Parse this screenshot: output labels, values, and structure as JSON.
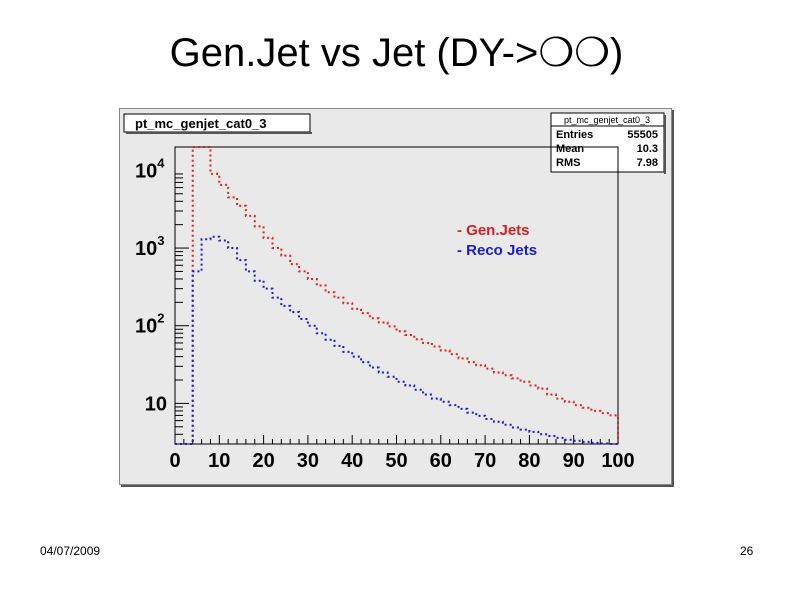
{
  "slide": {
    "title": "Gen.Jet vs Jet (DY->❍❍)",
    "date": "04/07/2009",
    "page_number": "26"
  },
  "chart_data": {
    "type": "histogram-step",
    "title": "pt_mc_genjet_cat0_3",
    "stats": {
      "name": "pt_mc_genjet_cat0_3",
      "rows": [
        {
          "label": "Entries",
          "value": "55505"
        },
        {
          "label": "Mean",
          "value": "10.3"
        },
        {
          "label": "RMS",
          "value": "7.98"
        }
      ]
    },
    "x_ticks": [
      "0",
      "10",
      "20",
      "30",
      "40",
      "50",
      "60",
      "70",
      "80",
      "90",
      "100"
    ],
    "xlim": [
      0,
      100
    ],
    "y_scale": "log",
    "ylim": [
      3,
      20000
    ],
    "y_ticks": [
      {
        "value": 10,
        "base": "10",
        "exp": ""
      },
      {
        "value": 100,
        "base": "10",
        "exp": "2"
      },
      {
        "value": 1000,
        "base": "10",
        "exp": "3"
      },
      {
        "value": 10000,
        "base": "10",
        "exp": "4"
      }
    ],
    "legend": {
      "placement": "upper-right",
      "entries": [
        {
          "label": "- Gen.Jets",
          "color": "#d42020"
        },
        {
          "label": "- Reco Jets",
          "color": "#1a1ad0"
        }
      ]
    },
    "bin_width": 2,
    "series": [
      {
        "name": "Gen.Jets",
        "color": "#e32020",
        "bins": [
          {
            "x": 0,
            "y": 0
          },
          {
            "x": 2,
            "y": 0
          },
          {
            "x": 4,
            "y": 20000
          },
          {
            "x": 6,
            "y": 20000
          },
          {
            "x": 8,
            "y": 9000
          },
          {
            "x": 10,
            "y": 6500
          },
          {
            "x": 12,
            "y": 4500
          },
          {
            "x": 14,
            "y": 3500
          },
          {
            "x": 16,
            "y": 2600
          },
          {
            "x": 18,
            "y": 1900
          },
          {
            "x": 20,
            "y": 1350
          },
          {
            "x": 22,
            "y": 1000
          },
          {
            "x": 24,
            "y": 800
          },
          {
            "x": 26,
            "y": 620
          },
          {
            "x": 28,
            "y": 500
          },
          {
            "x": 30,
            "y": 400
          },
          {
            "x": 32,
            "y": 330
          },
          {
            "x": 34,
            "y": 270
          },
          {
            "x": 36,
            "y": 230
          },
          {
            "x": 38,
            "y": 195
          },
          {
            "x": 40,
            "y": 165
          },
          {
            "x": 42,
            "y": 145
          },
          {
            "x": 44,
            "y": 125
          },
          {
            "x": 46,
            "y": 110
          },
          {
            "x": 48,
            "y": 98
          },
          {
            "x": 50,
            "y": 85
          },
          {
            "x": 52,
            "y": 76
          },
          {
            "x": 54,
            "y": 67
          },
          {
            "x": 56,
            "y": 60
          },
          {
            "x": 58,
            "y": 54
          },
          {
            "x": 60,
            "y": 48
          },
          {
            "x": 62,
            "y": 43
          },
          {
            "x": 64,
            "y": 38
          },
          {
            "x": 66,
            "y": 34
          },
          {
            "x": 68,
            "y": 31
          },
          {
            "x": 70,
            "y": 28
          },
          {
            "x": 72,
            "y": 25
          },
          {
            "x": 74,
            "y": 23
          },
          {
            "x": 76,
            "y": 21
          },
          {
            "x": 78,
            "y": 19
          },
          {
            "x": 80,
            "y": 17
          },
          {
            "x": 82,
            "y": 15.5
          },
          {
            "x": 84,
            "y": 13
          },
          {
            "x": 86,
            "y": 11.5
          },
          {
            "x": 88,
            "y": 10.5
          },
          {
            "x": 90,
            "y": 9.5
          },
          {
            "x": 92,
            "y": 8.8
          },
          {
            "x": 94,
            "y": 8
          },
          {
            "x": 96,
            "y": 7.5
          },
          {
            "x": 98,
            "y": 7
          }
        ]
      },
      {
        "name": "Reco Jets",
        "color": "#1a1ad8",
        "bins": [
          {
            "x": 0,
            "y": 0
          },
          {
            "x": 2,
            "y": 0
          },
          {
            "x": 4,
            "y": 500
          },
          {
            "x": 6,
            "y": 1300
          },
          {
            "x": 8,
            "y": 1400
          },
          {
            "x": 10,
            "y": 1250
          },
          {
            "x": 12,
            "y": 1000
          },
          {
            "x": 14,
            "y": 700
          },
          {
            "x": 16,
            "y": 500
          },
          {
            "x": 18,
            "y": 380
          },
          {
            "x": 20,
            "y": 300
          },
          {
            "x": 22,
            "y": 230
          },
          {
            "x": 24,
            "y": 180
          },
          {
            "x": 26,
            "y": 150
          },
          {
            "x": 28,
            "y": 122
          },
          {
            "x": 30,
            "y": 100
          },
          {
            "x": 32,
            "y": 80
          },
          {
            "x": 34,
            "y": 66
          },
          {
            "x": 36,
            "y": 55
          },
          {
            "x": 38,
            "y": 46
          },
          {
            "x": 40,
            "y": 40
          },
          {
            "x": 42,
            "y": 34
          },
          {
            "x": 44,
            "y": 29
          },
          {
            "x": 46,
            "y": 25
          },
          {
            "x": 48,
            "y": 22
          },
          {
            "x": 50,
            "y": 19
          },
          {
            "x": 52,
            "y": 17
          },
          {
            "x": 54,
            "y": 15
          },
          {
            "x": 56,
            "y": 13
          },
          {
            "x": 58,
            "y": 11.5
          },
          {
            "x": 60,
            "y": 10.5
          },
          {
            "x": 62,
            "y": 9.5
          },
          {
            "x": 64,
            "y": 8.5
          },
          {
            "x": 66,
            "y": 7.6
          },
          {
            "x": 68,
            "y": 6.9
          },
          {
            "x": 70,
            "y": 6.3
          },
          {
            "x": 72,
            "y": 5.8
          },
          {
            "x": 74,
            "y": 5.3
          },
          {
            "x": 76,
            "y": 4.9
          },
          {
            "x": 78,
            "y": 4.6
          },
          {
            "x": 80,
            "y": 4.3
          },
          {
            "x": 82,
            "y": 4.0
          },
          {
            "x": 84,
            "y": 3.8
          },
          {
            "x": 86,
            "y": 3.6
          },
          {
            "x": 88,
            "y": 3.4
          },
          {
            "x": 90,
            "y": 3.3
          },
          {
            "x": 92,
            "y": 3.2
          },
          {
            "x": 94,
            "y": 3.1
          },
          {
            "x": 96,
            "y": 3.05
          },
          {
            "x": 98,
            "y": 3.0
          }
        ]
      }
    ]
  }
}
